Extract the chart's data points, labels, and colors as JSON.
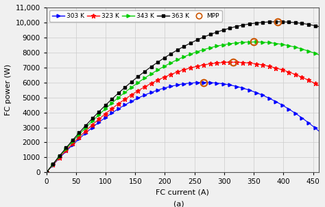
{
  "title": "(a)",
  "xlabel": "FC current (A)",
  "ylabel": "FC power (W)",
  "xlim": [
    0,
    460
  ],
  "ylim": [
    0,
    11000
  ],
  "xticks": [
    0,
    50,
    100,
    150,
    200,
    250,
    300,
    350,
    400,
    450
  ],
  "yticks": [
    0,
    1000,
    2000,
    3000,
    4000,
    5000,
    6000,
    7000,
    8000,
    9000,
    10000,
    11000
  ],
  "curves": [
    {
      "label": "303 K",
      "color": "#0000ff",
      "marker": ">",
      "peak_x": 265,
      "peak_y": 6000,
      "x_end": 460
    },
    {
      "label": "323 K",
      "color": "#ff0000",
      "marker": "*",
      "peak_x": 315,
      "peak_y": 7350,
      "x_end": 460
    },
    {
      "label": "343 K",
      "color": "#00cc00",
      "marker": ">",
      "peak_x": 350,
      "peak_y": 8700,
      "x_end": 460
    },
    {
      "label": "363 K",
      "color": "#000000",
      "marker": "s",
      "peak_x": 390,
      "peak_y": 10050,
      "x_end": 460
    }
  ],
  "mpp_color": "#cc5500",
  "background_color": "#f0f0f0",
  "grid_color": "#cccccc",
  "markersize": 3.5,
  "linewidth": 0.8,
  "figsize": [
    4.74,
    3.03
  ],
  "dpi": 100
}
